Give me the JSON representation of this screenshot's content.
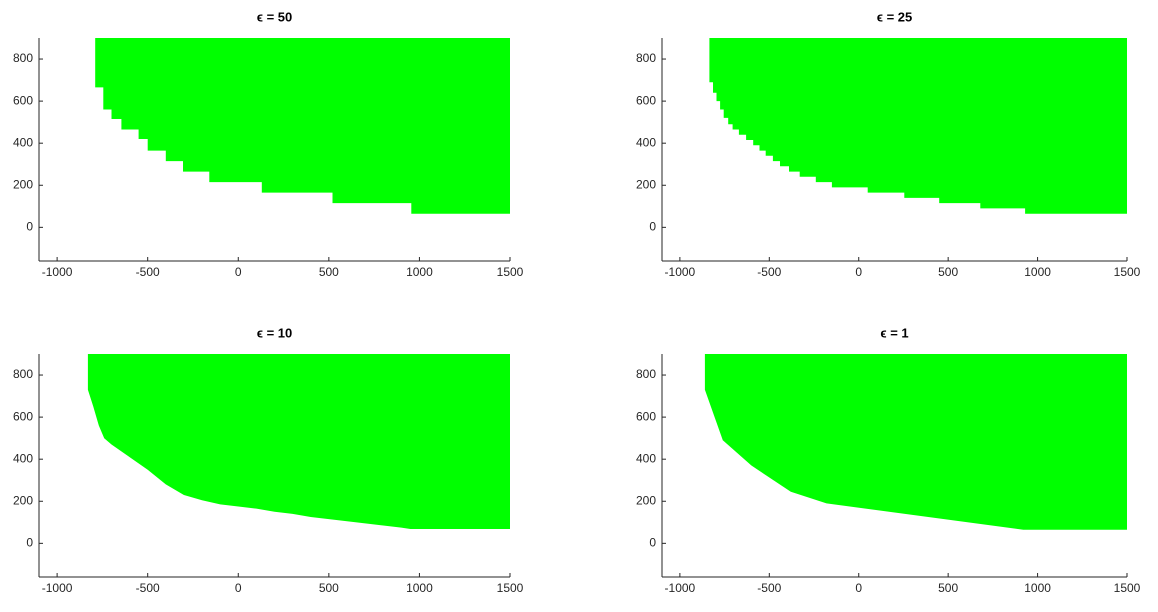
{
  "chart_data": [
    {
      "type": "area",
      "title": "ϵ = 50",
      "color": "#00ff00",
      "grid": false,
      "xlim": [
        -1100,
        1500
      ],
      "ylim": [
        -160,
        900
      ],
      "xticks": [
        -1000,
        -500,
        0,
        500,
        1000,
        1500
      ],
      "yticks": [
        0,
        200,
        400,
        600,
        800
      ],
      "x": [
        -790,
        -790,
        -745,
        -745,
        -700,
        -700,
        -645,
        -645,
        -550,
        -550,
        -500,
        -500,
        -400,
        -400,
        -305,
        -305,
        -160,
        -160,
        130,
        130,
        520,
        520,
        955,
        955,
        1500,
        1500
      ],
      "values": [
        900,
        665,
        665,
        560,
        560,
        515,
        515,
        465,
        465,
        420,
        420,
        365,
        365,
        315,
        315,
        265,
        265,
        215,
        215,
        165,
        165,
        115,
        115,
        65,
        65,
        900
      ]
    },
    {
      "type": "area",
      "title": "ϵ = 25",
      "color": "#00ff00",
      "grid": false,
      "xlim": [
        -1100,
        1500
      ],
      "ylim": [
        -160,
        900
      ],
      "xticks": [
        -1000,
        -500,
        0,
        500,
        1000,
        1500
      ],
      "yticks": [
        0,
        200,
        400,
        600,
        800
      ],
      "x": [
        -835,
        -835,
        -815,
        -815,
        -795,
        -795,
        -775,
        -775,
        -755,
        -755,
        -730,
        -730,
        -705,
        -705,
        -670,
        -670,
        -630,
        -630,
        -590,
        -590,
        -555,
        -555,
        -520,
        -520,
        -480,
        -480,
        -440,
        -440,
        -390,
        -390,
        -330,
        -330,
        -240,
        -240,
        -150,
        -150,
        50,
        50,
        255,
        255,
        450,
        450,
        680,
        680,
        930,
        930,
        1500,
        1500
      ],
      "values": [
        900,
        690,
        690,
        640,
        640,
        600,
        600,
        560,
        560,
        520,
        520,
        490,
        490,
        465,
        465,
        440,
        440,
        415,
        415,
        390,
        390,
        365,
        365,
        340,
        340,
        315,
        315,
        290,
        290,
        265,
        265,
        240,
        240,
        215,
        215,
        190,
        190,
        165,
        165,
        140,
        140,
        115,
        115,
        90,
        90,
        65,
        65,
        900
      ]
    },
    {
      "type": "area",
      "title": "ϵ = 10",
      "color": "#00ff00",
      "grid": false,
      "xlim": [
        -1100,
        1500
      ],
      "ylim": [
        -160,
        900
      ],
      "xticks": [
        -1000,
        -500,
        0,
        500,
        1000,
        1500
      ],
      "yticks": [
        0,
        200,
        400,
        600,
        800
      ],
      "x": [
        -830,
        -830,
        -800,
        -770,
        -740,
        -700,
        -600,
        -500,
        -400,
        -300,
        -200,
        -100,
        0,
        100,
        200,
        300,
        400,
        500,
        600,
        700,
        800,
        900,
        950,
        1500,
        1500
      ],
      "values": [
        900,
        730,
        650,
        560,
        500,
        470,
        410,
        350,
        280,
        230,
        205,
        185,
        175,
        165,
        150,
        140,
        125,
        115,
        105,
        95,
        85,
        75,
        68,
        68,
        900
      ]
    },
    {
      "type": "area",
      "title": "ϵ = 1",
      "color": "#00ff00",
      "grid": false,
      "xlim": [
        -1100,
        1500
      ],
      "ylim": [
        -160,
        900
      ],
      "xticks": [
        -1000,
        -500,
        0,
        500,
        1000,
        1500
      ],
      "yticks": [
        0,
        200,
        400,
        600,
        800
      ],
      "x": [
        -860,
        -860,
        -760,
        -600,
        -380,
        -180,
        920,
        1500,
        1500
      ],
      "values": [
        900,
        730,
        490,
        370,
        245,
        190,
        65,
        65,
        900
      ]
    }
  ]
}
